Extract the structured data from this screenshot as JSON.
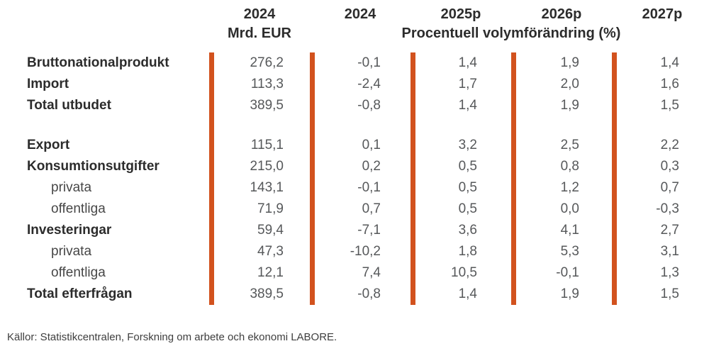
{
  "colors": {
    "accent_bar": "#d2521e",
    "heading_text": "#2c2c2c",
    "number_text": "#56585a"
  },
  "table": {
    "header": {
      "years": [
        "2024",
        "2024",
        "2025p",
        "2026p",
        "2027p"
      ],
      "unit_label": "Mrd. EUR",
      "percent_label": "Procentuell volymförändring (%)"
    },
    "rows": [
      {
        "label": "Bruttonationalprodukt",
        "values": [
          "276,2",
          "-0,1",
          "1,4",
          "1,9",
          "1,4"
        ]
      },
      {
        "label": "Import",
        "values": [
          "113,3",
          "-2,4",
          "1,7",
          "2,0",
          "1,6"
        ]
      },
      {
        "label": "Total utbudet",
        "values": [
          "389,5",
          "-0,8",
          "1,4",
          "1,9",
          "1,5"
        ]
      },
      {
        "label": "Export",
        "values": [
          "115,1",
          "0,1",
          "3,2",
          "2,5",
          "2,2"
        ]
      },
      {
        "label": "Konsumtionsutgifter",
        "values": [
          "215,0",
          "0,2",
          "0,5",
          "0,8",
          "0,3"
        ]
      },
      {
        "label": "privata",
        "values": [
          "143,1",
          "-0,1",
          "0,5",
          "1,2",
          "0,7"
        ]
      },
      {
        "label": "offentliga",
        "values": [
          "71,9",
          "0,7",
          "0,5",
          "0,0",
          "-0,3"
        ]
      },
      {
        "label": "Investeringar",
        "values": [
          "59,4",
          "-7,1",
          "3,6",
          "4,1",
          "2,7"
        ]
      },
      {
        "label": "privata",
        "values": [
          "47,3",
          "-10,2",
          "1,8",
          "5,3",
          "3,1"
        ]
      },
      {
        "label": "offentliga",
        "values": [
          "12,1",
          "7,4",
          "10,5",
          "-0,1",
          "1,3"
        ]
      },
      {
        "label": "Total efterfrågan",
        "values": [
          "389,5",
          "-0,8",
          "1,4",
          "1,9",
          "1,5"
        ]
      }
    ]
  },
  "footer": {
    "source": "Källor: Statistikcentralen, Forskning om arbete och ekonomi LABORE."
  },
  "chart_data": {
    "type": "table",
    "title": "",
    "columns": [
      "",
      "2024 (Mrd. EUR)",
      "2024 (%)",
      "2025p (%)",
      "2026p (%)",
      "2027p (%)"
    ],
    "unit_note": "Procentuell volymförändring (%)",
    "rows": [
      [
        "Bruttonationalprodukt",
        276.2,
        -0.1,
        1.4,
        1.9,
        1.4
      ],
      [
        "Import",
        113.3,
        -2.4,
        1.7,
        2.0,
        1.6
      ],
      [
        "Total utbudet",
        389.5,
        -0.8,
        1.4,
        1.9,
        1.5
      ],
      [
        "Export",
        115.1,
        0.1,
        3.2,
        2.5,
        2.2
      ],
      [
        "Konsumtionsutgifter",
        215.0,
        0.2,
        0.5,
        0.8,
        0.3
      ],
      [
        "Konsumtionsutgifter privata",
        143.1,
        -0.1,
        0.5,
        1.2,
        0.7
      ],
      [
        "Konsumtionsutgifter offentliga",
        71.9,
        0.7,
        0.5,
        0.0,
        -0.3
      ],
      [
        "Investeringar",
        59.4,
        -7.1,
        3.6,
        4.1,
        2.7
      ],
      [
        "Investeringar privata",
        47.3,
        -10.2,
        1.8,
        5.3,
        3.1
      ],
      [
        "Investeringar offentliga",
        12.1,
        7.4,
        10.5,
        -0.1,
        1.3
      ],
      [
        "Total efterfrågan",
        389.5,
        -0.8,
        1.4,
        1.9,
        1.5
      ]
    ],
    "source": "Källor: Statistikcentralen, Forskning om arbete och ekonomi LABORE."
  }
}
